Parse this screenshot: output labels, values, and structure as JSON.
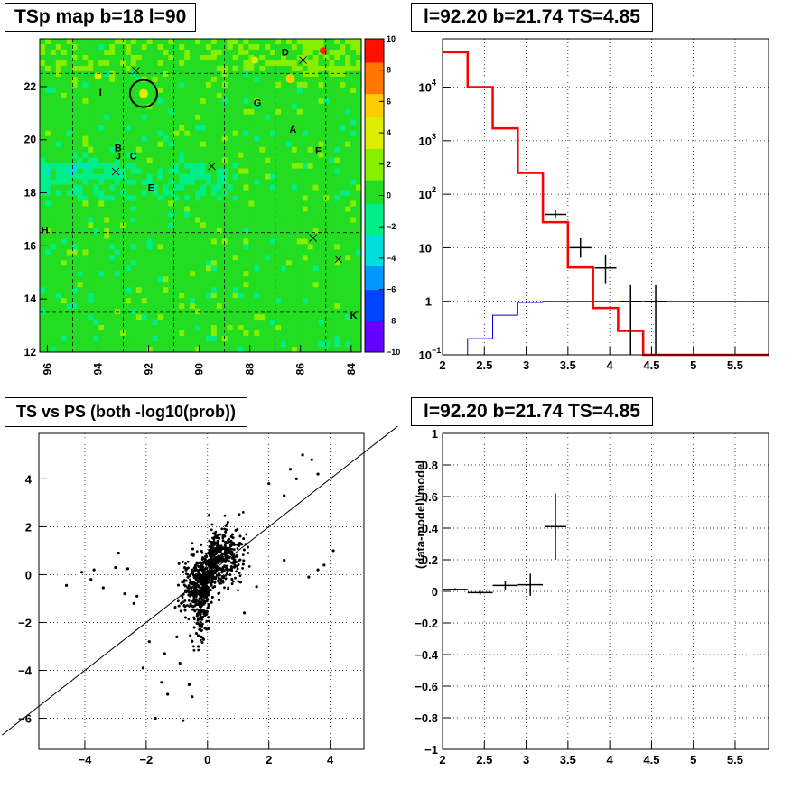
{
  "chart_data": [
    {
      "type": "heatmap",
      "title": "TSp map b=18 l=90",
      "xlim": [
        96.3,
        83.6
      ],
      "ylim": [
        12,
        23.8
      ],
      "x_ticks": [
        "96",
        "94",
        "92",
        "90",
        "88",
        "86",
        "84"
      ],
      "y_ticks": [
        "12",
        "14",
        "16",
        "18",
        "20",
        "22"
      ],
      "colorbar": {
        "range": [
          -10,
          10
        ],
        "ticks": [
          "10",
          "8",
          "6",
          "4",
          "2",
          "0",
          "−2",
          "−4",
          "−6",
          "−8",
          "−10"
        ],
        "palette": [
          "#6600ff",
          "#0044ff",
          "#0099ff",
          "#00dddd",
          "#00ee88",
          "#22dd22",
          "#88ee00",
          "#ddee00",
          "#ffcc00",
          "#ff7700",
          "#ff1100"
        ]
      },
      "labels": [
        {
          "text": "D",
          "l": 86.6,
          "b": 23.3
        },
        {
          "text": "I",
          "l": 93.9,
          "b": 21.8
        },
        {
          "text": "G",
          "l": 87.7,
          "b": 21.4
        },
        {
          "text": "A",
          "l": 86.3,
          "b": 20.4
        },
        {
          "text": "F",
          "l": 85.3,
          "b": 19.6
        },
        {
          "text": "B",
          "l": 93.2,
          "b": 19.7
        },
        {
          "text": "J",
          "l": 93.2,
          "b": 19.4
        },
        {
          "text": "C",
          "l": 92.6,
          "b": 19.4
        },
        {
          "text": "E",
          "l": 91.9,
          "b": 18.2
        },
        {
          "text": "H",
          "l": 96.1,
          "b": 16.6
        },
        {
          "text": "K",
          "l": 83.9,
          "b": 13.4
        }
      ],
      "crosses": [
        {
          "l": 92.5,
          "b": 22.6
        },
        {
          "l": 85.9,
          "b": 23.0
        },
        {
          "l": 93.3,
          "b": 18.8
        },
        {
          "l": 89.5,
          "b": 19.0
        },
        {
          "l": 85.5,
          "b": 16.3
        },
        {
          "l": 84.5,
          "b": 15.5
        }
      ],
      "circle": {
        "l": 92.2,
        "b": 21.74
      }
    },
    {
      "type": "line",
      "title": "l=92.20 b=21.74 TS=4.85",
      "xlim": [
        2,
        5.9
      ],
      "ylim": [
        0.1,
        80000
      ],
      "yscale": "log",
      "x_ticks": [
        "2",
        "2.5",
        "3",
        "3.5",
        "4",
        "4.5",
        "5",
        "5.5"
      ],
      "y_ticks": [
        "10^-1",
        "1",
        "10",
        "10^2",
        "10^3",
        "10^4"
      ],
      "series": [
        {
          "role": "model (red)",
          "color": "#ff0000",
          "edges": [
            2.0,
            2.3,
            2.6,
            2.9,
            3.2,
            3.5,
            3.8,
            4.1,
            4.4,
            4.7,
            5.0,
            5.3,
            5.6,
            5.9
          ],
          "values": [
            45000,
            10000,
            1700,
            250,
            30,
            4.3,
            0.75,
            0.28,
            0.1,
            0.1,
            0.1,
            0.1,
            0.1
          ]
        },
        {
          "role": "data (black)",
          "color": "#000000",
          "edges": [
            2.0,
            2.3,
            2.6,
            2.9,
            3.2,
            3.5,
            3.8,
            4.1,
            4.4,
            4.7,
            5.0,
            5.3,
            5.6,
            5.9
          ],
          "values": [
            45000,
            10000,
            1700,
            250,
            30,
            4.3,
            0.75,
            0.28,
            0.1,
            0.1,
            0.1,
            0.1,
            0.1
          ]
        },
        {
          "role": "background (blue)",
          "color": "#0000cc",
          "edges": [
            2.0,
            2.3,
            2.6,
            2.9,
            3.2,
            3.5,
            5.9
          ],
          "values": [
            0.1,
            0.2,
            0.55,
            0.95,
            1.0,
            1.0
          ]
        }
      ],
      "points": [
        {
          "x": 3.35,
          "y": 42,
          "xerr": 0.13,
          "ylo": 35,
          "yhi": 50
        },
        {
          "x": 3.65,
          "y": 10,
          "xerr": 0.13,
          "ylo": 6.5,
          "yhi": 15
        },
        {
          "x": 3.95,
          "y": 4.2,
          "xerr": 0.13,
          "ylo": 2.1,
          "yhi": 7.5
        },
        {
          "x": 4.25,
          "y": 1.0,
          "xerr": 0.13,
          "ylo": 0.1,
          "yhi": 2.0
        },
        {
          "x": 4.55,
          "y": 1.0,
          "xerr": 0.13,
          "ylo": 0.1,
          "yhi": 2.0
        }
      ]
    },
    {
      "type": "scatter",
      "title": "TS vs PS (both -log10(prob))",
      "xlim": [
        -5.5,
        5.1
      ],
      "ylim": [
        -7.3,
        5.9
      ],
      "x_ticks": [
        "−4",
        "−2",
        "0",
        "2",
        "4"
      ],
      "y_ticks": [
        "−6",
        "−4",
        "−2",
        "0",
        "2",
        "4"
      ],
      "diagonal": {
        "slope": 1,
        "intercept": 0
      },
      "points": [
        [
          -4.6,
          -0.45
        ],
        [
          -4.1,
          0.1
        ],
        [
          -3.8,
          -0.2
        ],
        [
          -3.7,
          0.2
        ],
        [
          -3.4,
          -0.55
        ],
        [
          -3.0,
          0.3
        ],
        [
          -2.9,
          0.9
        ],
        [
          -2.7,
          -0.8
        ],
        [
          -2.6,
          0.25
        ],
        [
          -2.4,
          -1.2
        ],
        [
          -2.3,
          -0.9
        ],
        [
          -2.1,
          -3.9
        ],
        [
          -1.9,
          -2.8
        ],
        [
          -1.7,
          -6.0
        ],
        [
          -1.5,
          -4.5
        ],
        [
          -1.4,
          -3.3
        ],
        [
          -1.3,
          -5.0
        ],
        [
          -1.0,
          -2.6
        ],
        [
          -0.8,
          -6.1
        ],
        [
          -0.6,
          -4.6
        ],
        [
          -0.5,
          -5.1
        ],
        [
          -0.9,
          -3.7
        ],
        [
          -0.3,
          -3.0
        ],
        [
          -0.2,
          -2.6
        ],
        [
          2.0,
          3.8
        ],
        [
          2.7,
          4.4
        ],
        [
          3.1,
          5.0
        ],
        [
          3.4,
          4.8
        ],
        [
          3.6,
          4.2
        ],
        [
          2.9,
          4.0
        ],
        [
          2.5,
          3.3
        ],
        [
          3.8,
          0.4
        ],
        [
          3.6,
          0.2
        ],
        [
          4.1,
          1.0
        ],
        [
          3.3,
          -0.1
        ],
        [
          2.5,
          0.6
        ],
        [
          1.6,
          -0.5
        ],
        [
          1.2,
          -1.6
        ]
      ]
    },
    {
      "type": "scatter",
      "title": "l=92.20 b=21.74 TS=4.85",
      "ylabel": "(data-model)/model",
      "xlim": [
        2,
        5.9
      ],
      "ylim": [
        -1,
        1
      ],
      "x_ticks": [
        "2",
        "2.5",
        "3",
        "3.5",
        "4",
        "4.5",
        "5",
        "5.5"
      ],
      "y_ticks": [
        "−1",
        "−0.8",
        "−0.6",
        "−0.4",
        "−0.2",
        "0",
        "0.2",
        "0.4",
        "0.6",
        "0.8",
        "1"
      ],
      "points": [
        {
          "x": 2.15,
          "y": 0.012,
          "xerr": 0.15,
          "yerr": 0.008
        },
        {
          "x": 2.45,
          "y": -0.008,
          "xerr": 0.15,
          "yerr": 0.015
        },
        {
          "x": 2.75,
          "y": 0.038,
          "xerr": 0.15,
          "yerr": 0.03
        },
        {
          "x": 3.05,
          "y": 0.042,
          "xerr": 0.15,
          "yerr": 0.07
        },
        {
          "x": 3.35,
          "y": 0.41,
          "xerr": 0.13,
          "yerr": 0.21
        }
      ]
    }
  ]
}
